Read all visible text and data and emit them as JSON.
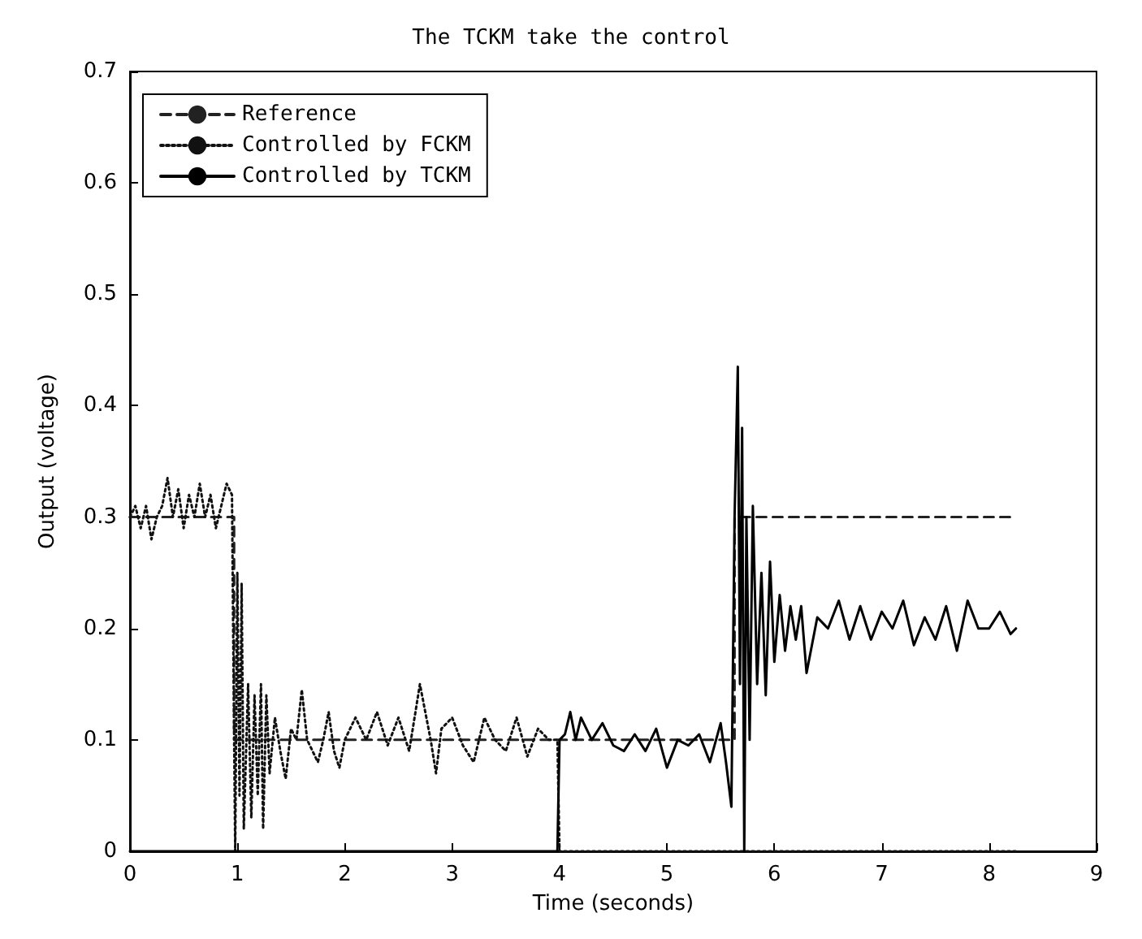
{
  "chart_data": {
    "type": "line",
    "title": "The TCKM take the control",
    "xlabel": "Time (seconds)",
    "ylabel": "Output (voltage)",
    "xlim": [
      0,
      9
    ],
    "xticks": [
      0,
      1,
      2,
      3,
      4,
      5,
      6,
      7,
      8,
      9
    ],
    "ylim": [
      0,
      0.7
    ],
    "yticks": [
      0,
      0.1,
      0.2,
      0.3,
      0.4,
      0.5,
      0.6,
      0.7
    ],
    "grid": false,
    "legend": "top left",
    "marker": "none",
    "series": [
      {
        "name": "Reference",
        "color": "#222222",
        "line_style": "dashed",
        "x": [
          0,
          0.97,
          0.97,
          5.63,
          5.63,
          8.25
        ],
        "values": [
          0.3,
          0.3,
          0.1,
          0.1,
          0.3,
          0.3
        ]
      },
      {
        "name": "Controlled by FCKM",
        "color": "#111111",
        "line_style": "dotted",
        "x": [
          0,
          0.05,
          0.1,
          0.15,
          0.2,
          0.25,
          0.3,
          0.35,
          0.4,
          0.45,
          0.5,
          0.55,
          0.6,
          0.65,
          0.7,
          0.75,
          0.8,
          0.85,
          0.9,
          0.95,
          0.97,
          0.98,
          1.0,
          1.02,
          1.04,
          1.06,
          1.1,
          1.13,
          1.16,
          1.19,
          1.22,
          1.24,
          1.27,
          1.3,
          1.35,
          1.4,
          1.45,
          1.5,
          1.55,
          1.6,
          1.65,
          1.7,
          1.75,
          1.8,
          1.85,
          1.9,
          1.95,
          2.0,
          2.1,
          2.2,
          2.3,
          2.4,
          2.5,
          2.6,
          2.7,
          2.8,
          2.85,
          2.9,
          3.0,
          3.1,
          3.2,
          3.3,
          3.4,
          3.5,
          3.6,
          3.7,
          3.8,
          3.9,
          3.98,
          4.0,
          8.25
        ],
        "values": [
          0.3,
          0.31,
          0.29,
          0.31,
          0.28,
          0.3,
          0.31,
          0.335,
          0.3,
          0.325,
          0.29,
          0.32,
          0.3,
          0.33,
          0.3,
          0.32,
          0.29,
          0.31,
          0.33,
          0.32,
          0.1,
          0,
          0.25,
          0.05,
          0.24,
          0.02,
          0.15,
          0.03,
          0.14,
          0.05,
          0.15,
          0.02,
          0.14,
          0.07,
          0.12,
          0.09,
          0.065,
          0.11,
          0.1,
          0.145,
          0.1,
          0.09,
          0.08,
          0.1,
          0.125,
          0.09,
          0.075,
          0.1,
          0.12,
          0.1,
          0.125,
          0.095,
          0.12,
          0.09,
          0.15,
          0.1,
          0.07,
          0.11,
          0.12,
          0.095,
          0.08,
          0.12,
          0.1,
          0.09,
          0.12,
          0.085,
          0.11,
          0.1,
          0.1,
          0,
          0
        ]
      },
      {
        "name": "Controlled by TCKM",
        "color": "#000000",
        "line_style": "solid",
        "x": [
          0,
          3.98,
          4.0,
          4.05,
          4.1,
          4.15,
          4.2,
          4.3,
          4.4,
          4.5,
          4.6,
          4.7,
          4.8,
          4.9,
          5.0,
          5.1,
          5.2,
          5.3,
          5.4,
          5.5,
          5.55,
          5.6,
          5.63,
          5.66,
          5.68,
          5.7,
          5.72,
          5.74,
          5.77,
          5.8,
          5.84,
          5.88,
          5.92,
          5.96,
          6.0,
          6.05,
          6.1,
          6.15,
          6.2,
          6.25,
          6.3,
          6.4,
          6.5,
          6.6,
          6.7,
          6.8,
          6.9,
          7.0,
          7.1,
          7.2,
          7.3,
          7.4,
          7.5,
          7.6,
          7.7,
          7.8,
          7.9,
          8.0,
          8.1,
          8.2,
          8.25
        ],
        "values": [
          0,
          0,
          0.1,
          0.105,
          0.125,
          0.1,
          0.12,
          0.1,
          0.115,
          0.095,
          0.09,
          0.105,
          0.09,
          0.11,
          0.075,
          0.1,
          0.095,
          0.105,
          0.08,
          0.115,
          0.08,
          0.04,
          0.3,
          0.435,
          0.15,
          0.38,
          0,
          0.3,
          0.1,
          0.31,
          0.15,
          0.25,
          0.14,
          0.26,
          0.17,
          0.23,
          0.18,
          0.22,
          0.19,
          0.22,
          0.16,
          0.21,
          0.2,
          0.225,
          0.19,
          0.22,
          0.19,
          0.215,
          0.2,
          0.225,
          0.185,
          0.21,
          0.19,
          0.22,
          0.18,
          0.225,
          0.2,
          0.2,
          0.215,
          0.195,
          0.2
        ]
      }
    ]
  }
}
